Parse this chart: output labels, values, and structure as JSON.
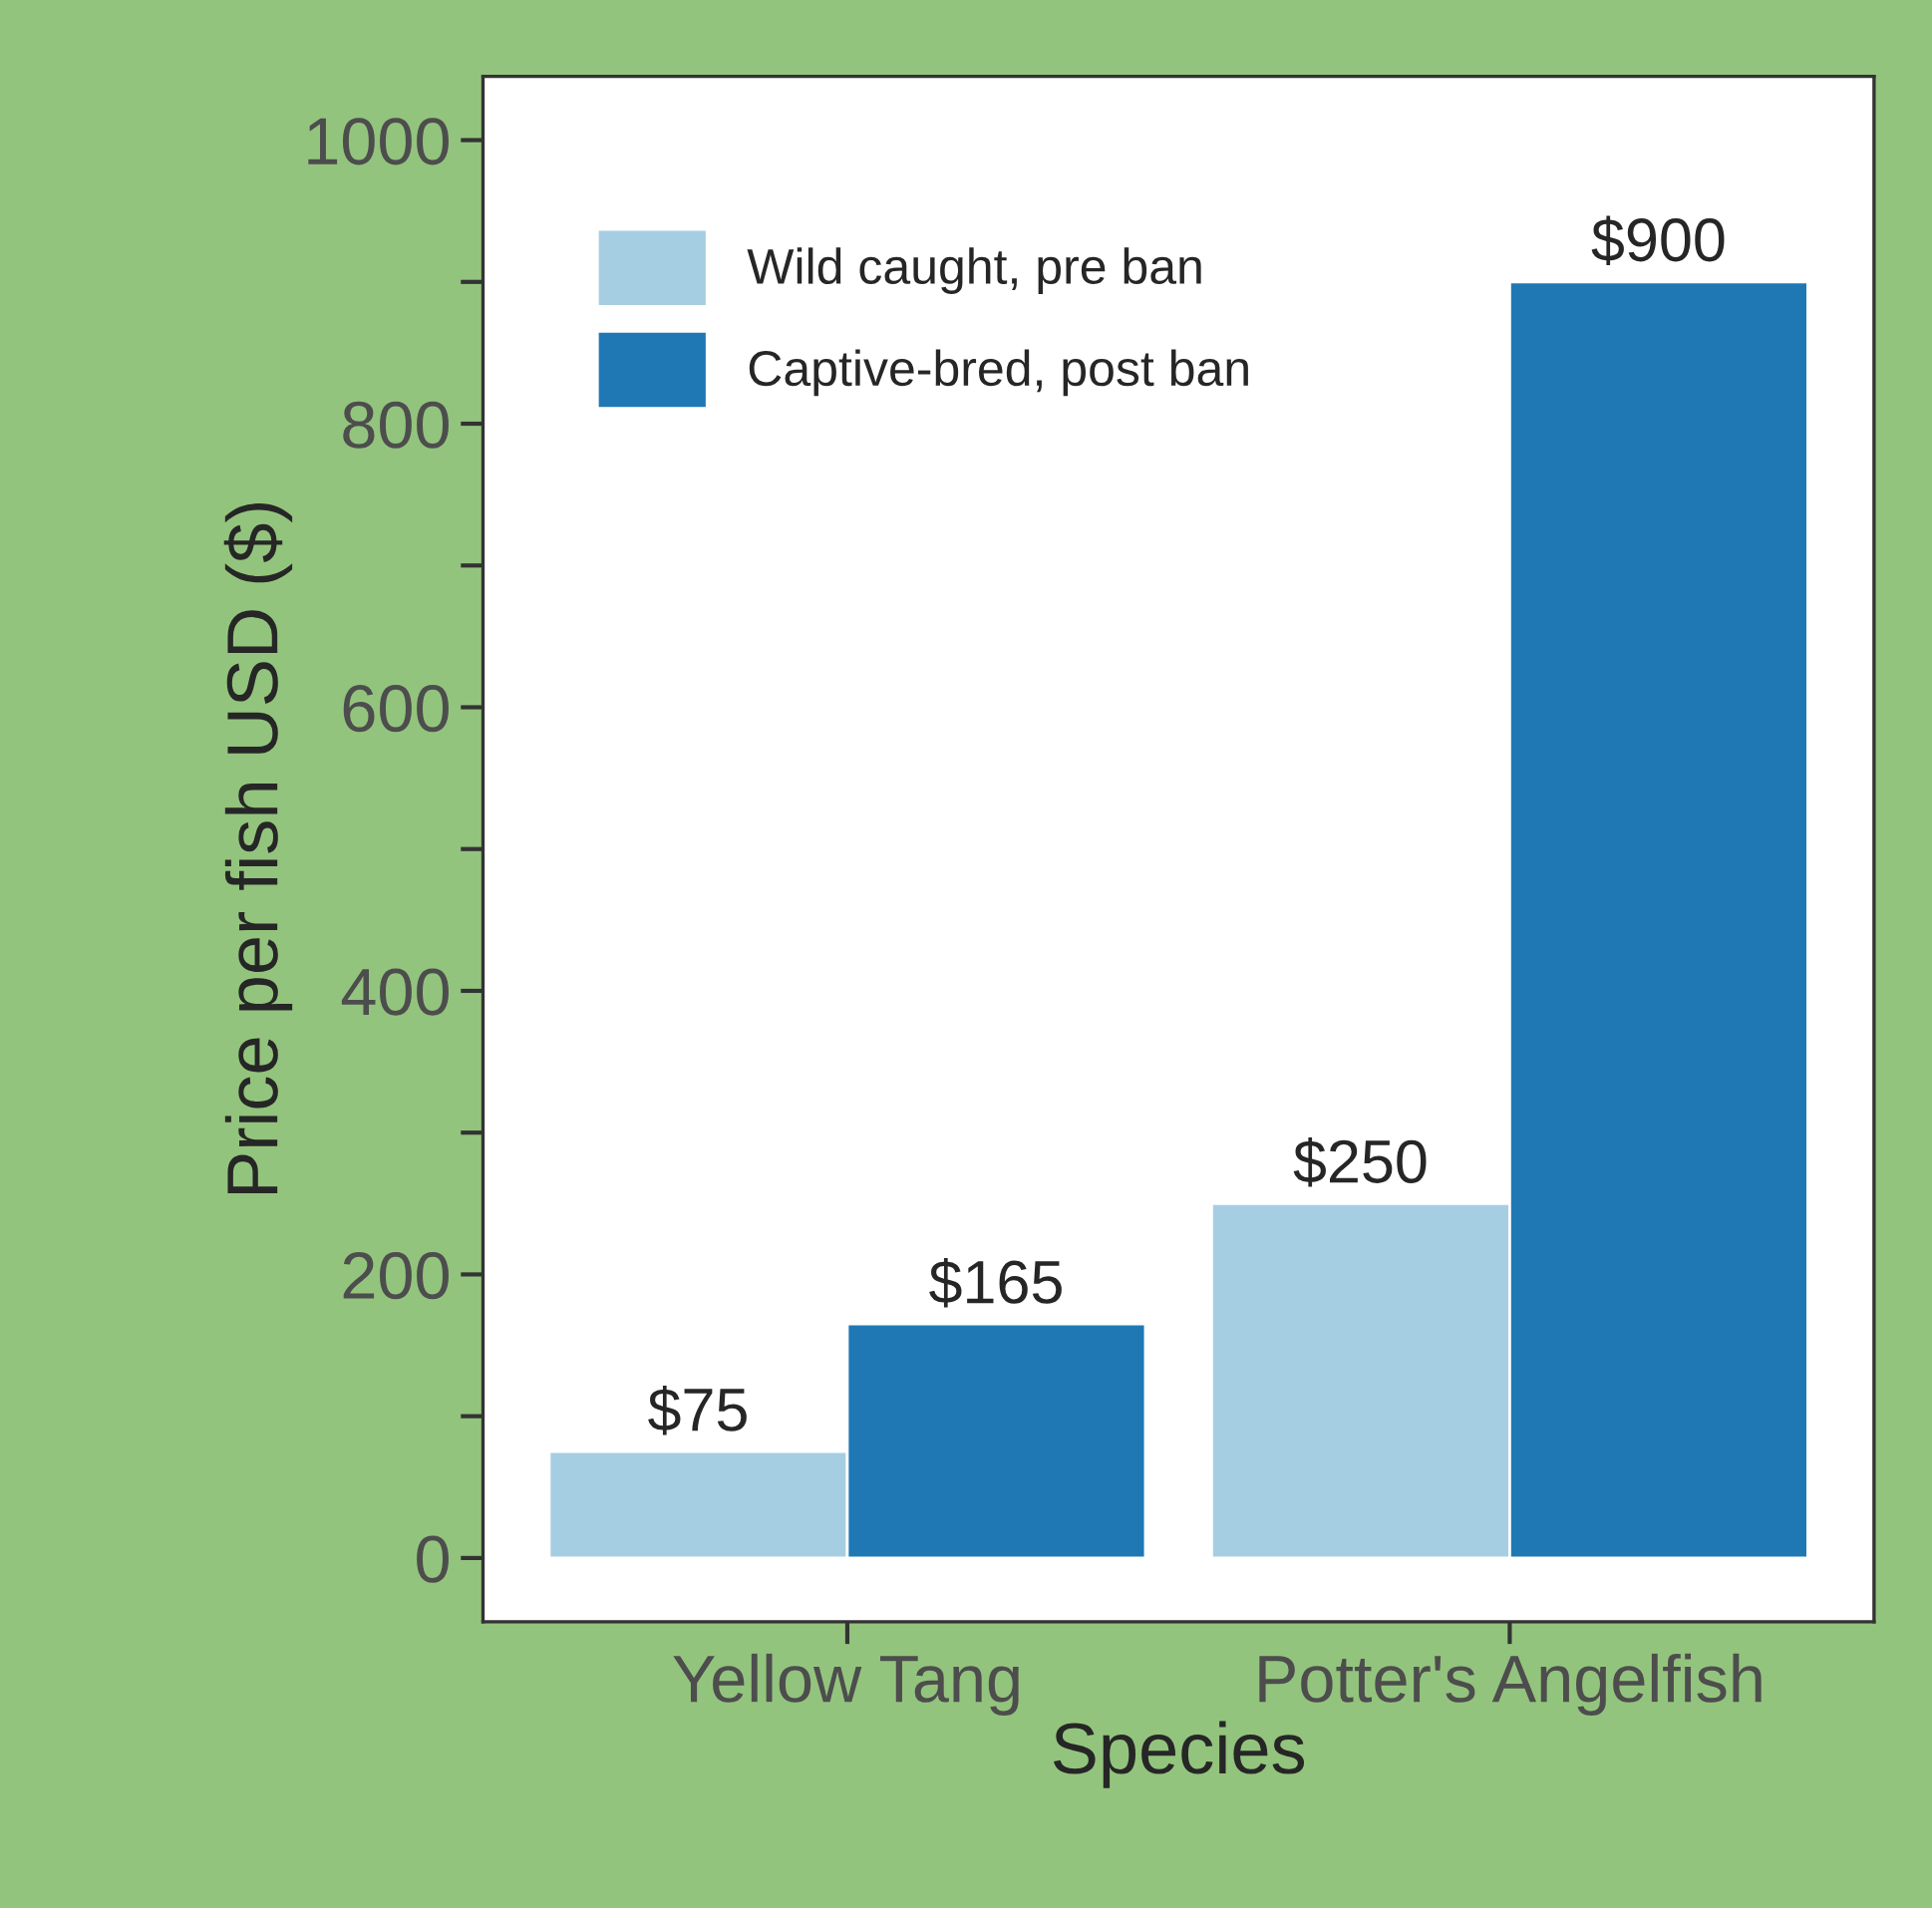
{
  "chart_data": {
    "type": "bar",
    "xlabel": "Species",
    "ylabel": "Price per fish USD ($)",
    "categories": [
      "Yellow Tang",
      "Potter's Angelfish"
    ],
    "series": [
      {
        "name": "Wild caught, pre ban",
        "color": "#a6cee3",
        "values": [
          75,
          250
        ],
        "value_labels": [
          "$75",
          "$250"
        ]
      },
      {
        "name": "Captive-bred, post ban",
        "color": "#1f78b4",
        "values": [
          165,
          900
        ],
        "value_labels": [
          "$165",
          "$900"
        ]
      }
    ],
    "ylim": [
      -45,
      1045
    ],
    "yticks": [
      0,
      {
        "value": 100,
        "label": null
      },
      200,
      {
        "value": 300,
        "label": null
      },
      400,
      {
        "value": 500,
        "label": null
      },
      600,
      {
        "value": 700,
        "label": null
      },
      800,
      {
        "value": 900,
        "label": null
      },
      1000
    ],
    "grid": false,
    "legend": "top left"
  }
}
